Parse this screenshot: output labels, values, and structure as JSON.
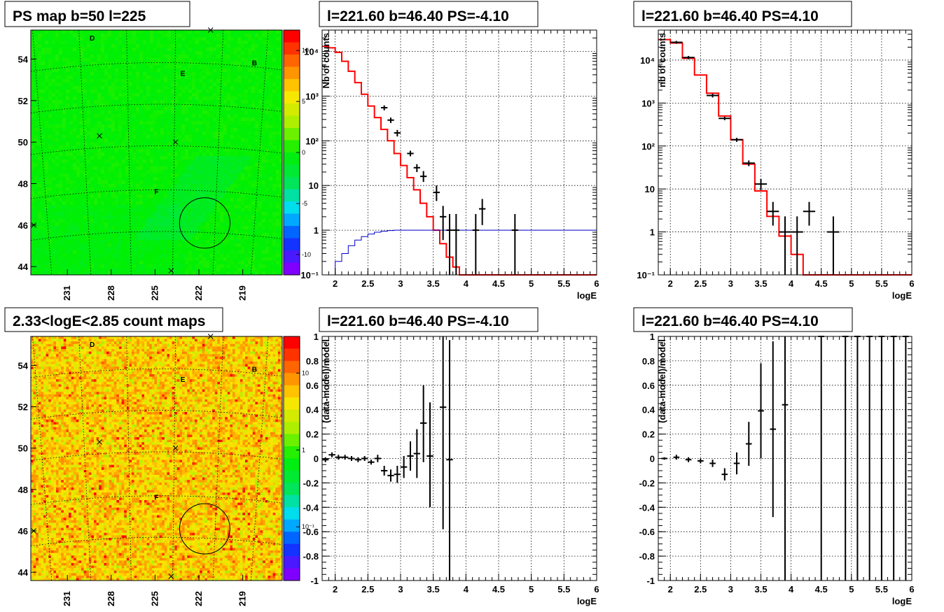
{
  "chart_data": [
    {
      "id": "ps_map",
      "type": "heatmap",
      "title": "PS map b=50 l=225",
      "x_ticks": [
        "231",
        "228",
        "225",
        "222",
        "219"
      ],
      "y_ticks": [
        "44",
        "46",
        "48",
        "50",
        "52",
        "54"
      ],
      "xlim": [
        233.5,
        216.3
      ],
      "ylim": [
        43.6,
        55.4
      ],
      "colorbar": {
        "scale": "linear",
        "range": [
          -12,
          12
        ],
        "ticks": [
          "10",
          "5",
          "0",
          "-5",
          "-10"
        ],
        "tick_values": [
          10,
          5,
          0,
          -5,
          -10
        ]
      },
      "labels": [
        {
          "text": "D",
          "l": 229.3,
          "b": 54.9
        },
        {
          "text": "B",
          "l": 218.2,
          "b": 53.7
        },
        {
          "text": "E",
          "l": 223.1,
          "b": 53.2
        },
        {
          "text": "F",
          "l": 224.9,
          "b": 47.5
        }
      ],
      "markers": [
        {
          "l": 221.2,
          "b": 55.4
        },
        {
          "l": 228.8,
          "b": 50.3
        },
        {
          "l": 223.6,
          "b": 50.0
        },
        {
          "l": 233.3,
          "b": 46.0
        },
        {
          "l": 223.9,
          "b": 43.8
        }
      ],
      "circle": {
        "l": 221.6,
        "b": 46.1,
        "r_deg": 0.45
      },
      "colors": {
        "low": "#7f00ff",
        "mid": "#00e000",
        "high": "#ff0000"
      }
    },
    {
      "id": "spectrum_neg",
      "type": "line",
      "title": "l=221.60 b=46.40 PS=-4.10",
      "xlabel": "logE",
      "ylabel": "Nb of counts",
      "xlim": [
        1.8,
        6.0
      ],
      "ylim": [
        0.1,
        30000
      ],
      "yscale": "log",
      "x_ticks": [
        "2",
        "2.5",
        "3",
        "3.5",
        "4",
        "4.5",
        "5",
        "5.5",
        "6"
      ],
      "x_tick_values": [
        2,
        2.5,
        3,
        3.5,
        4,
        4.5,
        5,
        5.5,
        6
      ],
      "y_ticks": [
        "10⁻¹",
        "1",
        "10",
        "10²",
        "10³",
        "10⁴"
      ],
      "y_tick_values": [
        0.1,
        1,
        10,
        100,
        1000,
        10000
      ],
      "bin_edges": [
        1.8,
        1.9,
        2.0,
        2.1,
        2.2,
        2.3,
        2.4,
        2.5,
        2.6,
        2.7,
        2.8,
        2.9,
        3.0,
        3.1,
        3.2,
        3.3,
        3.4,
        3.5,
        3.6,
        3.7,
        3.8,
        3.9,
        4.0,
        4.1,
        4.2,
        6.0
      ],
      "series": [
        {
          "name": "",
          "color": "#ff0000",
          "values": [
            13000,
            12000,
            9500,
            6000,
            3600,
            2000,
            1100,
            600,
            330,
            180,
            100,
            52,
            28,
            15,
            8,
            4,
            2,
            1,
            0.5,
            0.25,
            0.15,
            0.1,
            0.1,
            0.1,
            0.1
          ]
        },
        {
          "name": "",
          "color": "#0000cc",
          "values": [
            0.05,
            0.1,
            0.2,
            0.3,
            0.45,
            0.6,
            0.72,
            0.82,
            0.9,
            0.95,
            0.98,
            1,
            1,
            1,
            1,
            1,
            1,
            1,
            1,
            1,
            1,
            1,
            1,
            1,
            1
          ]
        }
      ],
      "points": [
        {
          "x": 2.75,
          "y": 550,
          "lo": 480,
          "hi": 620
        },
        {
          "x": 2.85,
          "y": 290,
          "lo": 250,
          "hi": 330
        },
        {
          "x": 2.95,
          "y": 150,
          "lo": 125,
          "hi": 175
        },
        {
          "x": 3.15,
          "y": 52,
          "lo": 45,
          "hi": 60
        },
        {
          "x": 3.25,
          "y": 25,
          "lo": 20,
          "hi": 30
        },
        {
          "x": 3.35,
          "y": 16,
          "lo": 12,
          "hi": 21
        },
        {
          "x": 3.55,
          "y": 7,
          "lo": 4.5,
          "hi": 10
        },
        {
          "x": 3.65,
          "y": 2,
          "lo": 0.6,
          "hi": 3.5
        },
        {
          "x": 3.75,
          "y": 1,
          "lo": 0.1,
          "hi": 2.3
        },
        {
          "x": 3.85,
          "y": 1,
          "lo": 0.1,
          "hi": 2.3
        },
        {
          "x": 4.15,
          "y": 1,
          "lo": 0.1,
          "hi": 2.3
        },
        {
          "x": 4.25,
          "y": 3,
          "lo": 1.3,
          "hi": 5.0
        },
        {
          "x": 4.75,
          "y": 1,
          "lo": 0.1,
          "hi": 2.3
        }
      ]
    },
    {
      "id": "spectrum_pos",
      "type": "line",
      "title": "l=221.60 b=46.40 PS=4.10",
      "xlabel": "logE",
      "ylabel": "nb of counts",
      "xlim": [
        1.8,
        6.0
      ],
      "ylim": [
        0.1,
        50000
      ],
      "yscale": "log",
      "x_ticks": [
        "2",
        "2.5",
        "3",
        "3.5",
        "4",
        "4.5",
        "5",
        "5.5",
        "6"
      ],
      "x_tick_values": [
        2,
        2.5,
        3,
        3.5,
        4,
        4.5,
        5,
        5.5,
        6
      ],
      "y_ticks": [
        "10⁻¹",
        "1",
        "10",
        "10²",
        "10³",
        "10⁴"
      ],
      "y_tick_values": [
        0.1,
        1,
        10,
        100,
        1000,
        10000
      ],
      "bin_edges": [
        1.8,
        2.0,
        2.2,
        2.4,
        2.6,
        2.8,
        3.0,
        3.2,
        3.4,
        3.6,
        3.8,
        4.0,
        4.2,
        6.0
      ],
      "series": [
        {
          "name": "",
          "color": "#ff0000",
          "values": [
            30000,
            25000,
            11000,
            4500,
            1700,
            500,
            140,
            38,
            9,
            2.3,
            0.8,
            0.3,
            0.1
          ]
        }
      ],
      "points": [
        {
          "x": 2.1,
          "y": 26000,
          "lo": 24000,
          "hi": 28000
        },
        {
          "x": 2.3,
          "y": 11500,
          "lo": 10500,
          "hi": 12500
        },
        {
          "x": 2.7,
          "y": 1500,
          "lo": 1350,
          "hi": 1650
        },
        {
          "x": 2.9,
          "y": 440,
          "lo": 400,
          "hi": 480
        },
        {
          "x": 3.1,
          "y": 140,
          "lo": 125,
          "hi": 155
        },
        {
          "x": 3.3,
          "y": 40,
          "lo": 34,
          "hi": 46
        },
        {
          "x": 3.5,
          "y": 13,
          "lo": 9.5,
          "hi": 17
        },
        {
          "x": 3.7,
          "y": 3,
          "lo": 1.4,
          "hi": 5
        },
        {
          "x": 3.9,
          "y": 1,
          "lo": 0.1,
          "hi": 2.3
        },
        {
          "x": 4.1,
          "y": 1,
          "lo": 0.1,
          "hi": 2.3
        },
        {
          "x": 4.3,
          "y": 3,
          "lo": 1.4,
          "hi": 5
        },
        {
          "x": 4.7,
          "y": 1,
          "lo": 0.1,
          "hi": 2.3
        }
      ]
    },
    {
      "id": "count_map",
      "type": "heatmap",
      "title": "2.33<logE<2.85 count maps",
      "x_ticks": [
        "231",
        "228",
        "225",
        "222",
        "219"
      ],
      "y_ticks": [
        "44",
        "46",
        "48",
        "50",
        "52",
        "54"
      ],
      "xlim": [
        233.5,
        216.3
      ],
      "ylim": [
        43.6,
        55.4
      ],
      "colorbar": {
        "scale": "log",
        "range": [
          0.02,
          30
        ],
        "ticks": [
          "10",
          "1",
          "10⁻¹"
        ],
        "tick_values": [
          10,
          1,
          0.1
        ]
      },
      "labels": [
        {
          "text": "D",
          "l": 229.3,
          "b": 54.9
        },
        {
          "text": "B",
          "l": 218.2,
          "b": 53.7
        },
        {
          "text": "E",
          "l": 223.1,
          "b": 53.2
        },
        {
          "text": "F",
          "l": 224.9,
          "b": 47.5
        }
      ],
      "markers": [
        {
          "l": 221.2,
          "b": 55.4
        },
        {
          "l": 228.8,
          "b": 50.3
        },
        {
          "l": 223.6,
          "b": 50.0
        },
        {
          "l": 233.3,
          "b": 46.0
        },
        {
          "l": 223.9,
          "b": 43.8
        }
      ],
      "circle": {
        "l": 221.6,
        "b": 46.1,
        "r_deg": 0.45
      },
      "colors": {
        "low": "#7f00ff",
        "mid": "#ffee00",
        "high": "#ff0000"
      }
    },
    {
      "id": "residual_neg",
      "type": "scatter",
      "title": "l=221.60 b=46.40 PS=-4.10",
      "xlabel": "logE",
      "ylabel": "(data-model)/model",
      "xlim": [
        1.8,
        6.0
      ],
      "ylim": [
        -1,
        1
      ],
      "x_ticks": [
        "2",
        "2.5",
        "3",
        "3.5",
        "4",
        "4.5",
        "5",
        "5.5",
        "6"
      ],
      "x_tick_values": [
        2,
        2.5,
        3,
        3.5,
        4,
        4.5,
        5,
        5.5,
        6
      ],
      "y_ticks": [
        "1",
        "0.8",
        "0.6",
        "0.4",
        "0.2",
        "0",
        "-0.2",
        "-0.4",
        "-0.6",
        "-0.8",
        "-1"
      ],
      "y_tick_values": [
        1,
        0.8,
        0.6,
        0.4,
        0.2,
        0,
        -0.2,
        -0.4,
        -0.6,
        -0.8,
        -1
      ],
      "points": [
        {
          "x": 1.85,
          "y": -0.01,
          "lo": -0.03,
          "hi": 0.01
        },
        {
          "x": 1.95,
          "y": 0.03,
          "lo": 0.01,
          "hi": 0.05
        },
        {
          "x": 2.05,
          "y": 0.01,
          "lo": -0.01,
          "hi": 0.03
        },
        {
          "x": 2.15,
          "y": 0.01,
          "lo": -0.01,
          "hi": 0.03
        },
        {
          "x": 2.25,
          "y": 0.0,
          "lo": -0.02,
          "hi": 0.02
        },
        {
          "x": 2.35,
          "y": -0.01,
          "lo": -0.03,
          "hi": 0.01
        },
        {
          "x": 2.45,
          "y": 0.0,
          "lo": -0.02,
          "hi": 0.02
        },
        {
          "x": 2.55,
          "y": -0.03,
          "lo": -0.05,
          "hi": -0.01
        },
        {
          "x": 2.65,
          "y": 0.0,
          "lo": -0.03,
          "hi": 0.03
        },
        {
          "x": 2.75,
          "y": -0.1,
          "lo": -0.14,
          "hi": -0.06
        },
        {
          "x": 2.85,
          "y": -0.14,
          "lo": -0.19,
          "hi": -0.09
        },
        {
          "x": 2.95,
          "y": -0.13,
          "lo": -0.2,
          "hi": -0.06
        },
        {
          "x": 3.05,
          "y": -0.07,
          "lo": -0.16,
          "hi": 0.02
        },
        {
          "x": 3.15,
          "y": 0.02,
          "lo": -0.1,
          "hi": 0.14
        },
        {
          "x": 3.25,
          "y": 0.04,
          "lo": -0.16,
          "hi": 0.24
        },
        {
          "x": 3.35,
          "y": 0.29,
          "lo": -0.03,
          "hi": 0.6
        },
        {
          "x": 3.45,
          "y": 0.02,
          "lo": -0.4,
          "hi": 0.46
        },
        {
          "x": 3.65,
          "y": 0.42,
          "lo": -0.58,
          "hi": 1.0
        },
        {
          "x": 3.75,
          "y": -0.01,
          "lo": -1.0,
          "hi": 0.97
        }
      ]
    },
    {
      "id": "residual_pos",
      "type": "scatter",
      "title": "l=221.60 b=46.40 PS=4.10",
      "xlabel": "logE",
      "ylabel": "(data-model)/model",
      "xlim": [
        1.8,
        6.0
      ],
      "ylim": [
        -1,
        1
      ],
      "x_ticks": [
        "2",
        "2.5",
        "3",
        "3.5",
        "4",
        "4.5",
        "5",
        "5.5",
        "6"
      ],
      "x_tick_values": [
        2,
        2.5,
        3,
        3.5,
        4,
        4.5,
        5,
        5.5,
        6
      ],
      "y_ticks": [
        "1",
        "0.8",
        "0.6",
        "0.4",
        "0.2",
        "0",
        "-0.2",
        "-0.4",
        "-0.6",
        "-0.8",
        "-1"
      ],
      "y_tick_values": [
        1,
        0.8,
        0.6,
        0.4,
        0.2,
        0,
        -0.2,
        -0.4,
        -0.6,
        -0.8,
        -1
      ],
      "points": [
        {
          "x": 1.9,
          "y": 0.0,
          "lo": -0.01,
          "hi": 0.01
        },
        {
          "x": 2.1,
          "y": 0.01,
          "lo": -0.01,
          "hi": 0.03
        },
        {
          "x": 2.3,
          "y": -0.01,
          "lo": -0.03,
          "hi": 0.01
        },
        {
          "x": 2.5,
          "y": -0.02,
          "lo": -0.04,
          "hi": 0.0
        },
        {
          "x": 2.7,
          "y": -0.04,
          "lo": -0.07,
          "hi": -0.01
        },
        {
          "x": 2.9,
          "y": -0.13,
          "lo": -0.18,
          "hi": -0.08
        },
        {
          "x": 3.1,
          "y": -0.04,
          "lo": -0.13,
          "hi": 0.05
        },
        {
          "x": 3.3,
          "y": 0.12,
          "lo": -0.06,
          "hi": 0.3
        },
        {
          "x": 3.5,
          "y": 0.39,
          "lo": 0.0,
          "hi": 0.78
        },
        {
          "x": 3.7,
          "y": 0.24,
          "lo": -0.48,
          "hi": 0.96
        },
        {
          "x": 3.9,
          "y": 0.44,
          "lo": -1.0,
          "hi": 1.0
        },
        {
          "x": 4.5,
          "y": 1.0,
          "lo": -1.0,
          "hi": 1.0
        },
        {
          "x": 4.9,
          "y": 1.0,
          "lo": -1.0,
          "hi": 1.0
        },
        {
          "x": 5.1,
          "y": 1.0,
          "lo": -1.0,
          "hi": 1.0
        },
        {
          "x": 5.3,
          "y": 1.0,
          "lo": -1.0,
          "hi": 1.0
        },
        {
          "x": 5.5,
          "y": 1.0,
          "lo": -1.0,
          "hi": 1.0
        },
        {
          "x": 5.7,
          "y": 1.0,
          "lo": -1.0,
          "hi": 1.0
        },
        {
          "x": 5.9,
          "y": 1.0,
          "lo": -1.0,
          "hi": 1.0
        }
      ]
    }
  ]
}
